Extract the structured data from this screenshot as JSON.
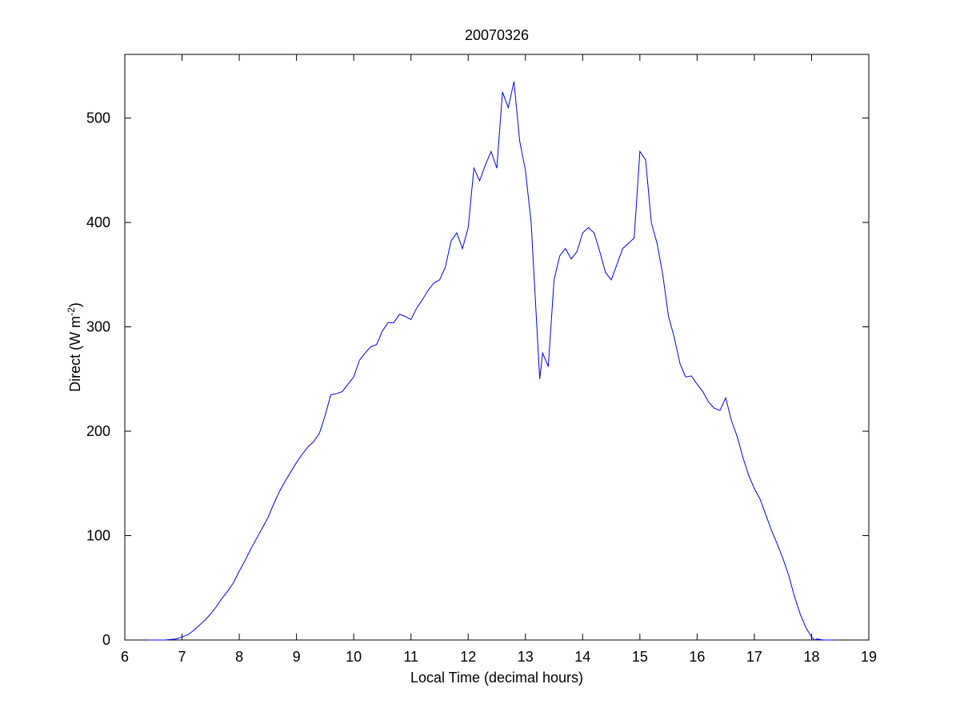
{
  "chart_data": {
    "type": "line",
    "title": "20070326",
    "x_label": "Local Time (decimal hours)",
    "y_label": [
      "Direct (W m",
      "-2",
      ")"
    ],
    "x": [
      6.4,
      6.5,
      6.6,
      6.7,
      6.8,
      6.9,
      7.0,
      7.1,
      7.2,
      7.3,
      7.4,
      7.5,
      7.6,
      7.7,
      7.8,
      7.9,
      8.0,
      8.1,
      8.2,
      8.3,
      8.4,
      8.5,
      8.6,
      8.7,
      8.8,
      8.9,
      9.0,
      9.1,
      9.2,
      9.3,
      9.4,
      9.5,
      9.6,
      9.7,
      9.8,
      9.9,
      10.0,
      10.1,
      10.2,
      10.3,
      10.4,
      10.5,
      10.6,
      10.7,
      10.8,
      10.9,
      11.0,
      11.1,
      11.2,
      11.3,
      11.4,
      11.5,
      11.6,
      11.7,
      11.8,
      11.9,
      12.0,
      12.1,
      12.2,
      12.3,
      12.4,
      12.5,
      12.6,
      12.7,
      12.8,
      12.9,
      13.0,
      13.1,
      13.2,
      13.25,
      13.3,
      13.4,
      13.5,
      13.6,
      13.7,
      13.8,
      13.9,
      14.0,
      14.1,
      14.2,
      14.3,
      14.4,
      14.5,
      14.6,
      14.7,
      14.8,
      14.9,
      15.0,
      15.1,
      15.2,
      15.3,
      15.4,
      15.5,
      15.6,
      15.7,
      15.8,
      15.9,
      16.0,
      16.1,
      16.2,
      16.3,
      16.4,
      16.5,
      16.6,
      16.7,
      16.8,
      16.9,
      17.0,
      17.1,
      17.2,
      17.3,
      17.4,
      17.5,
      17.6,
      17.7,
      17.8,
      17.9,
      18.0,
      18.05,
      18.1,
      18.2,
      18.4
    ],
    "series": [
      {
        "color": "#0000ff",
        "values": [
          0,
          0,
          0,
          0,
          0.5,
          1,
          3,
          5,
          9,
          14,
          19,
          25,
          32,
          40,
          47,
          55,
          66,
          76,
          87,
          97,
          107,
          117,
          130,
          142,
          152,
          161,
          170,
          178,
          185,
          190,
          198,
          215,
          235,
          236,
          238,
          245,
          252,
          268,
          275,
          281,
          283,
          296,
          304,
          304,
          312,
          310,
          307,
          318,
          326,
          335,
          342,
          345,
          357,
          382,
          390,
          375,
          395,
          452,
          440,
          455,
          468,
          452,
          525,
          510,
          535,
          478,
          450,
          400,
          300,
          250,
          275,
          262,
          345,
          368,
          375,
          365,
          372,
          390,
          395,
          390,
          372,
          352,
          345,
          360,
          375,
          380,
          385,
          468,
          460,
          400,
          380,
          350,
          310,
          290,
          265,
          252,
          253,
          245,
          238,
          228,
          222,
          220,
          232,
          210,
          195,
          175,
          158,
          145,
          135,
          120,
          105,
          92,
          78,
          62,
          42,
          25,
          12,
          3,
          0,
          1,
          0,
          0
        ]
      }
    ],
    "xlim": [
      6,
      19
    ],
    "xticks": [
      6,
      7,
      8,
      9,
      10,
      11,
      12,
      13,
      14,
      15,
      16,
      17,
      18,
      19
    ],
    "ylim": [
      0,
      561
    ],
    "yticks": [
      0,
      100,
      200,
      300,
      400,
      500
    ]
  }
}
